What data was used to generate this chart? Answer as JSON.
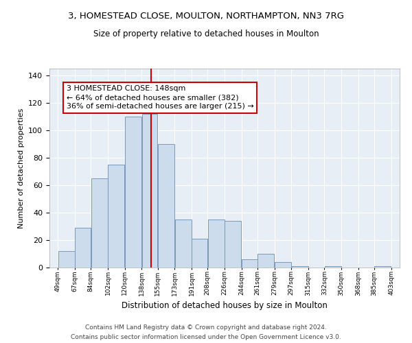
{
  "title": "3, HOMESTEAD CLOSE, MOULTON, NORTHAMPTON, NN3 7RG",
  "subtitle": "Size of property relative to detached houses in Moulton",
  "xlabel": "Distribution of detached houses by size in Moulton",
  "ylabel": "Number of detached properties",
  "bar_color": "#ccdcec",
  "bar_edge_color": "#7799bb",
  "bg_color": "#e8eef6",
  "grid_color": "#ffffff",
  "vline_x": 148,
  "vline_color": "#cc0000",
  "annotation_text": "3 HOMESTEAD CLOSE: 148sqm\n← 64% of detached houses are smaller (382)\n36% of semi-detached houses are larger (215) →",
  "annotation_box_color": "white",
  "annotation_box_edge": "#cc0000",
  "bins": [
    49,
    67,
    84,
    102,
    120,
    138,
    155,
    173,
    191,
    208,
    226,
    244,
    261,
    279,
    297,
    315,
    332,
    350,
    368,
    385,
    403
  ],
  "counts": [
    12,
    29,
    65,
    75,
    110,
    112,
    90,
    35,
    21,
    35,
    34,
    6,
    10,
    4,
    1,
    0,
    1,
    0,
    0,
    1
  ],
  "ylim": [
    0,
    145
  ],
  "yticks": [
    0,
    20,
    40,
    60,
    80,
    100,
    120,
    140
  ],
  "footnote1": "Contains HM Land Registry data © Crown copyright and database right 2024.",
  "footnote2": "Contains public sector information licensed under the Open Government Licence v3.0."
}
